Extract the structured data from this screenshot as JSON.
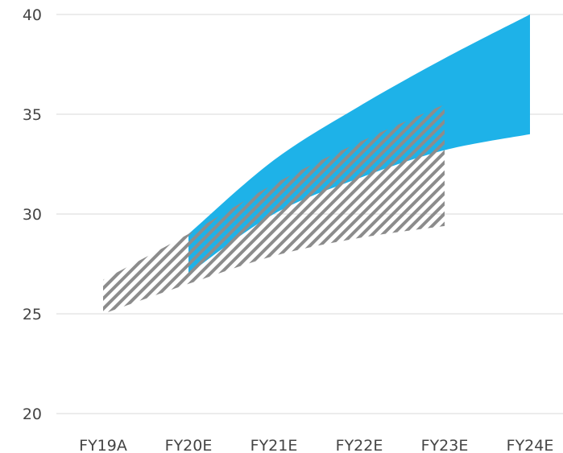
{
  "chart_data": {
    "type": "area",
    "categories": [
      "FY19A",
      "FY20E",
      "FY21E",
      "FY22E",
      "FY23E",
      "FY24E"
    ],
    "y_ticks": [
      20,
      25,
      30,
      35,
      40
    ],
    "ylim": [
      20,
      40
    ],
    "grid": true,
    "series": [
      {
        "style": "hatched",
        "color": "#808080",
        "low": [
          25.0,
          26.5,
          27.9,
          28.8,
          29.4,
          null
        ],
        "high": [
          26.7,
          29.0,
          31.5,
          33.6,
          35.5,
          null
        ]
      },
      {
        "style": "solid",
        "color": "#1ab0e8",
        "low": [
          null,
          27.0,
          30.0,
          31.8,
          33.2,
          34.0
        ],
        "high": [
          null,
          29.0,
          32.7,
          35.4,
          37.8,
          40.0
        ]
      }
    ],
    "x_tick_labels": [
      "FY19A",
      "FY20E",
      "FY21E",
      "FY22E",
      "FY23E",
      "FY24E"
    ],
    "y_tick_labels": [
      "20",
      "25",
      "30",
      "35",
      "40"
    ]
  }
}
